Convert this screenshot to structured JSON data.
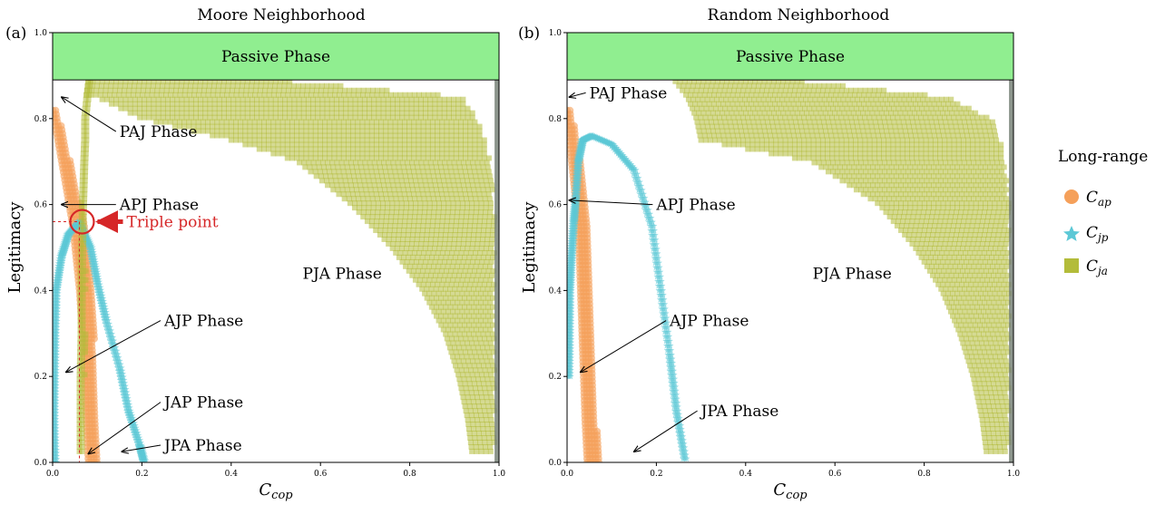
{
  "figure": {
    "legend": {
      "title": "Long-range",
      "entries": [
        {
          "key": "ap",
          "base": "C",
          "sub": "ap",
          "color": "#f5a05a",
          "marker": "circle-marker"
        },
        {
          "key": "jp",
          "base": "C",
          "sub": "jp",
          "color": "#5cc8d6",
          "marker": "star-marker"
        },
        {
          "key": "ja",
          "base": "C",
          "sub": "ja",
          "color": "#b3bc3a",
          "marker": "square-marker"
        }
      ]
    }
  },
  "chart_data": [
    {
      "type": "scatter",
      "panel_label": "(a)",
      "title": "Moore Neighborhood",
      "xlabel_base": "C",
      "xlabel_sub": "cop",
      "ylabel": "Legitimacy",
      "xlim": [
        0.0,
        1.0
      ],
      "ylim": [
        0.0,
        1.0
      ],
      "xticks": [
        "0.0",
        "0.2",
        "0.4",
        "0.6",
        "0.8",
        "1.0"
      ],
      "yticks": [
        "0.0",
        "0.2",
        "0.4",
        "0.6",
        "0.8",
        "1.0"
      ],
      "passive_band": {
        "label": "Passive Phase",
        "y_from": 0.89,
        "y_to": 1.0,
        "color": "#90ee90"
      },
      "triple_point": {
        "label": "Triple point",
        "x": 0.06,
        "y": 0.56,
        "color": "#d62728"
      },
      "phase_annotations": [
        {
          "label": "PAJ Phase",
          "text_x": 0.15,
          "text_y": 0.77,
          "arrow_x": 0.02,
          "arrow_y": 0.85
        },
        {
          "label": "APJ Phase",
          "text_x": 0.15,
          "text_y": 0.6,
          "arrow_x": 0.02,
          "arrow_y": 0.6
        },
        {
          "label": "PJA Phase",
          "text_x": 0.56,
          "text_y": 0.44,
          "arrow_x": null,
          "arrow_y": null
        },
        {
          "label": "AJP Phase",
          "text_x": 0.25,
          "text_y": 0.33,
          "arrow_x": 0.03,
          "arrow_y": 0.21
        },
        {
          "label": "JAP Phase",
          "text_x": 0.25,
          "text_y": 0.14,
          "arrow_x": 0.08,
          "arrow_y": 0.02
        },
        {
          "label": "JPA Phase",
          "text_x": 0.25,
          "text_y": 0.04,
          "arrow_x": 0.155,
          "arrow_y": 0.025
        }
      ],
      "series": [
        {
          "name": "C_ap",
          "marker": "circle",
          "color": "#f5a05a",
          "boundary": {
            "y": [
              0.82,
              0.7,
              0.55,
              0.4,
              0.25,
              0.1,
              0.0
            ],
            "x_left": [
              0.0,
              0.02,
              0.045,
              0.06,
              0.07,
              0.075,
              0.08
            ],
            "x_right": [
              0.01,
              0.04,
              0.075,
              0.09,
              0.095,
              0.1,
              0.105
            ]
          }
        },
        {
          "name": "C_jp",
          "marker": "star",
          "color": "#5cc8d6",
          "curves": [
            {
              "y": [
                0.0,
                0.1,
                0.2,
                0.3,
                0.4,
                0.48,
                0.53,
                0.56
              ],
              "x": [
                0.005,
                0.003,
                0.004,
                0.005,
                0.008,
                0.02,
                0.035,
                0.06
              ]
            },
            {
              "y": [
                0.56,
                0.5,
                0.42,
                0.33,
                0.22,
                0.12,
                0.04,
                0.0
              ],
              "x": [
                0.06,
                0.085,
                0.1,
                0.12,
                0.15,
                0.17,
                0.195,
                0.205
              ]
            }
          ]
        },
        {
          "name": "C_ja",
          "marker": "square",
          "color": "#b3bc3a",
          "region": {
            "y": [
              0.89,
              0.85,
              0.8,
              0.75,
              0.7,
              0.6,
              0.5,
              0.4,
              0.3,
              0.2,
              0.1,
              0.02
            ],
            "x_left": [
              0.08,
              0.075,
              0.07,
              0.07,
              0.068,
              0.065,
              0.063,
              0.062,
              0.062,
              0.06,
              0.06,
              0.06
            ],
            "x_right": [
              0.5,
              0.92,
              0.95,
              0.97,
              0.98,
              0.99,
              0.99,
              0.99,
              0.99,
              0.99,
              0.99,
              0.99
            ],
            "inner_right": [
              0.08,
              0.1,
              0.2,
              0.4,
              0.55,
              0.67,
              0.76,
              0.83,
              0.88,
              0.91,
              0.93,
              0.94
            ]
          }
        }
      ]
    },
    {
      "type": "scatter",
      "panel_label": "(b)",
      "title": "Random Neighborhood",
      "xlabel_base": "C",
      "xlabel_sub": "cop",
      "ylabel": "Legitimacy",
      "xlim": [
        0.0,
        1.0
      ],
      "ylim": [
        0.0,
        1.0
      ],
      "xticks": [
        "0.0",
        "0.2",
        "0.4",
        "0.6",
        "0.8",
        "1.0"
      ],
      "yticks": [
        "0.0",
        "0.2",
        "0.4",
        "0.6",
        "0.8",
        "1.0"
      ],
      "passive_band": {
        "label": "Passive Phase",
        "y_from": 0.89,
        "y_to": 1.0,
        "color": "#90ee90"
      },
      "phase_annotations": [
        {
          "label": "PAJ Phase",
          "text_x": 0.05,
          "text_y": 0.86,
          "arrow_x": 0.005,
          "arrow_y": 0.85
        },
        {
          "label": "APJ Phase",
          "text_x": 0.2,
          "text_y": 0.6,
          "arrow_x": 0.005,
          "arrow_y": 0.61
        },
        {
          "label": "PJA Phase",
          "text_x": 0.55,
          "text_y": 0.44,
          "arrow_x": null,
          "arrow_y": null
        },
        {
          "label": "AJP Phase",
          "text_x": 0.23,
          "text_y": 0.33,
          "arrow_x": 0.03,
          "arrow_y": 0.21
        },
        {
          "label": "JPA Phase",
          "text_x": 0.3,
          "text_y": 0.12,
          "arrow_x": 0.15,
          "arrow_y": 0.025
        }
      ],
      "series": [
        {
          "name": "C_ap",
          "marker": "circle",
          "color": "#f5a05a",
          "boundary": {
            "y": [
              0.82,
              0.7,
              0.55,
              0.4,
              0.25,
              0.1,
              0.0
            ],
            "x_left": [
              0.0,
              0.01,
              0.025,
              0.03,
              0.035,
              0.04,
              0.045
            ],
            "x_right": [
              0.01,
              0.03,
              0.045,
              0.055,
              0.06,
              0.065,
              0.075
            ]
          }
        },
        {
          "name": "C_jp",
          "marker": "star",
          "color": "#5cc8d6",
          "curves": [
            {
              "y": [
                0.2,
                0.3,
                0.4,
                0.48,
                0.56,
                0.62
              ],
              "x": [
                0.004,
                0.005,
                0.006,
                0.01,
                0.015,
                0.02
              ]
            },
            {
              "y": [
                0.62,
                0.7,
                0.75,
                0.76,
                0.74,
                0.68,
                0.55,
                0.4,
                0.25,
                0.12,
                0.0
              ],
              "x": [
                0.02,
                0.025,
                0.035,
                0.055,
                0.1,
                0.15,
                0.19,
                0.21,
                0.23,
                0.245,
                0.265
              ]
            }
          ]
        },
        {
          "name": "C_ja",
          "marker": "square",
          "color": "#b3bc3a",
          "region": {
            "y": [
              0.89,
              0.85,
              0.8,
              0.75,
              0.7,
              0.6,
              0.5,
              0.4,
              0.3,
              0.2,
              0.1,
              0.02
            ],
            "x_left": [
              0.24,
              0.27,
              0.29,
              0.3,
              0.3,
              0.3,
              0.3,
              0.3,
              0.3,
              0.3,
              0.3,
              0.3
            ],
            "x_right": [
              0.5,
              0.85,
              0.95,
              0.97,
              0.98,
              0.99,
              0.99,
              0.99,
              0.99,
              0.99,
              0.99,
              0.99
            ],
            "inner_right": [
              0.24,
              0.27,
              0.29,
              0.3,
              0.55,
              0.7,
              0.78,
              0.84,
              0.88,
              0.91,
              0.93,
              0.94
            ]
          }
        }
      ]
    }
  ]
}
